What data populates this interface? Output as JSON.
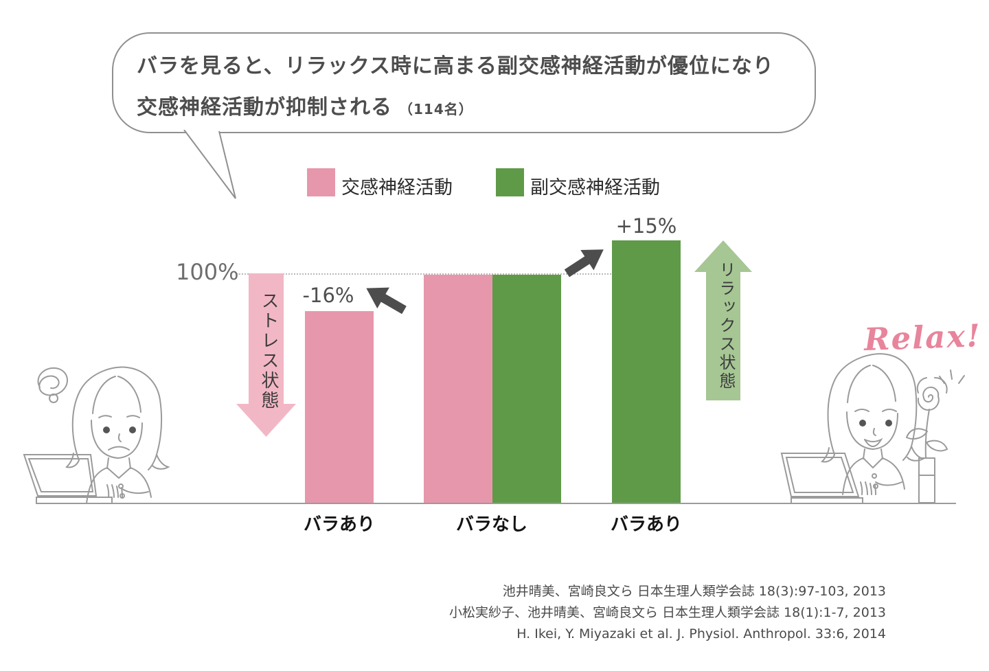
{
  "bubble": {
    "line1": "バラを見ると、リラックス時に高まる副交感神経活動が優位になり",
    "line2": "交感神経活動が抑制される",
    "note": "（114名）"
  },
  "legend": {
    "items": [
      {
        "label": "交感神経活動",
        "color_key": "bar_pink"
      },
      {
        "label": "副交感神経活動",
        "color_key": "bar_green"
      }
    ]
  },
  "chart_data": {
    "type": "bar",
    "unit": "%",
    "baseline_label": "100%",
    "reference_line": 100,
    "ylim": [
      0,
      115
    ],
    "grid": false,
    "legend_position": "top",
    "x_labels": [
      "バラあり",
      "バラなし",
      "バラあり"
    ],
    "bars": [
      {
        "category": "バラあり",
        "series": "交感神経活動",
        "percent": 84,
        "delta_label": "-16%",
        "color_key": "bar_pink"
      },
      {
        "category": "バラなし",
        "series": "交感神経活動",
        "percent": 100,
        "delta_label": "",
        "color_key": "bar_pink"
      },
      {
        "category": "バラなし",
        "series": "副交感神経活動",
        "percent": 100,
        "delta_label": "",
        "color_key": "bar_green"
      },
      {
        "category": "バラあり",
        "series": "副交感神経活動",
        "percent": 115,
        "delta_label": "+15%",
        "color_key": "bar_green"
      }
    ],
    "annotations": {
      "stress_arrow_label": "ストレス状態",
      "relax_arrow_label": "リラックス状態",
      "relax_script": "Relax!"
    }
  },
  "citations": [
    "池井晴美、宮崎良文ら 日本生理人類学会誌 18(3):97-103, 2013",
    "小松実紗子、池井晴美、宮崎良文ら 日本生理人類学会誌 18(1):1-7, 2013",
    "H. Ikei, Y. Miyazaki et al.  J. Physiol. Anthropol. 33:6, 2014"
  ],
  "colors": {
    "bar_pink": "#e697ac",
    "bar_green": "#5f9a49",
    "arrow_pink": "#f2b7c5",
    "arrow_green": "#a6c694",
    "dark_arrow": "#4d4d4d",
    "relax_text": "#e8849b",
    "line_art": "#9a9a9a"
  },
  "icons": {
    "left_illustration": "stressed-woman-at-laptop",
    "right_illustration": "relaxed-woman-at-laptop-with-rose",
    "stress_doodle": "scribble-lines",
    "rose": "rose-in-vase",
    "sparkle": "sparkle-lines"
  }
}
